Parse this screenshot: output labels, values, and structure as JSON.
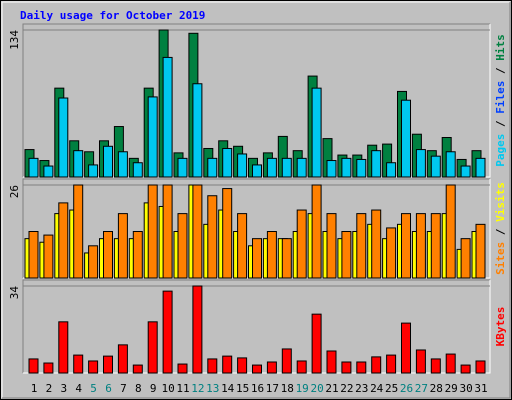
{
  "title": "Daily usage for October 2019",
  "legend_separator": " / ",
  "chart_data": [
    {
      "type": "bar",
      "ylim": [
        0,
        134
      ],
      "yticks": [
        134
      ],
      "series": [
        {
          "name": "Hits",
          "color": "#008040",
          "values": [
            25,
            15,
            81,
            33,
            23,
            33,
            46,
            17,
            81,
            134,
            22,
            131,
            26,
            33,
            28,
            17,
            22,
            37,
            24,
            92,
            35,
            20,
            20,
            29,
            30,
            78,
            39,
            24,
            36,
            16,
            24
          ]
        },
        {
          "name": "Files",
          "color": "#0040ff",
          "values": [
            null,
            null,
            null,
            null,
            null,
            null,
            null,
            null,
            null,
            null,
            null,
            null,
            null,
            null,
            null,
            null,
            null,
            null,
            null,
            null,
            null,
            null,
            null,
            null,
            null,
            null,
            null,
            null,
            null,
            null,
            null
          ]
        },
        {
          "name": "Pages",
          "color": "#00c8f0",
          "values": [
            17,
            10,
            72,
            24,
            11,
            28,
            23,
            13,
            73,
            109,
            17,
            85,
            17,
            26,
            21,
            11,
            17,
            17,
            17,
            81,
            15,
            17,
            16,
            24,
            13,
            70,
            25,
            19,
            23,
            10,
            17
          ]
        }
      ]
    },
    {
      "type": "bar",
      "ylim": [
        0,
        26
      ],
      "yticks": [
        26
      ],
      "series": [
        {
          "name": "Visits",
          "color": "#ffff00",
          "values": [
            11,
            10,
            18,
            19,
            7,
            11,
            11,
            11,
            21,
            20,
            13,
            26,
            15,
            19,
            13,
            9,
            11,
            11,
            13,
            18,
            13,
            11,
            13,
            15,
            11,
            15,
            13,
            13,
            18,
            8,
            13
          ]
        },
        {
          "name": "Sites",
          "color": "#ff8000",
          "values": [
            13,
            12,
            21,
            26,
            9,
            13,
            18,
            13,
            26,
            26,
            18,
            26,
            23,
            25,
            18,
            11,
            13,
            11,
            19,
            26,
            18,
            13,
            18,
            19,
            14,
            18,
            18,
            18,
            26,
            11,
            15
          ]
        }
      ]
    },
    {
      "type": "bar",
      "ylim": [
        0,
        34
      ],
      "yticks": [
        34
      ],
      "categories": [
        "1",
        "2",
        "3",
        "4",
        "5",
        "6",
        "7",
        "8",
        "9",
        "10",
        "11",
        "12",
        "13",
        "14",
        "15",
        "16",
        "17",
        "18",
        "19",
        "20",
        "21",
        "22",
        "23",
        "24",
        "25",
        "26",
        "27",
        "28",
        "29",
        "30",
        "31"
      ],
      "category_colors": [
        "#000000",
        "#000000",
        "#000000",
        "#000000",
        "#008080",
        "#008080",
        "#000000",
        "#000000",
        "#000000",
        "#000000",
        "#000000",
        "#008080",
        "#008080",
        "#000000",
        "#000000",
        "#000000",
        "#000000",
        "#000000",
        "#008080",
        "#008080",
        "#000000",
        "#000000",
        "#000000",
        "#000000",
        "#000000",
        "#008080",
        "#008080",
        "#000000",
        "#000000",
        "#000000",
        "#000000"
      ],
      "series": [
        {
          "name": "KBytes",
          "color": "#ff0000",
          "values": [
            5.5,
            3.9,
            20,
            7,
            4.7,
            6.6,
            11,
            3.1,
            20,
            32,
            3.5,
            34,
            5.5,
            6.6,
            5.9,
            3.1,
            4.3,
            9.4,
            4.7,
            23,
            8.6,
            4.3,
            4.3,
            6.3,
            7,
            19.5,
            9,
            5.5,
            7.4,
            3.1,
            4.7
          ]
        }
      ]
    }
  ]
}
